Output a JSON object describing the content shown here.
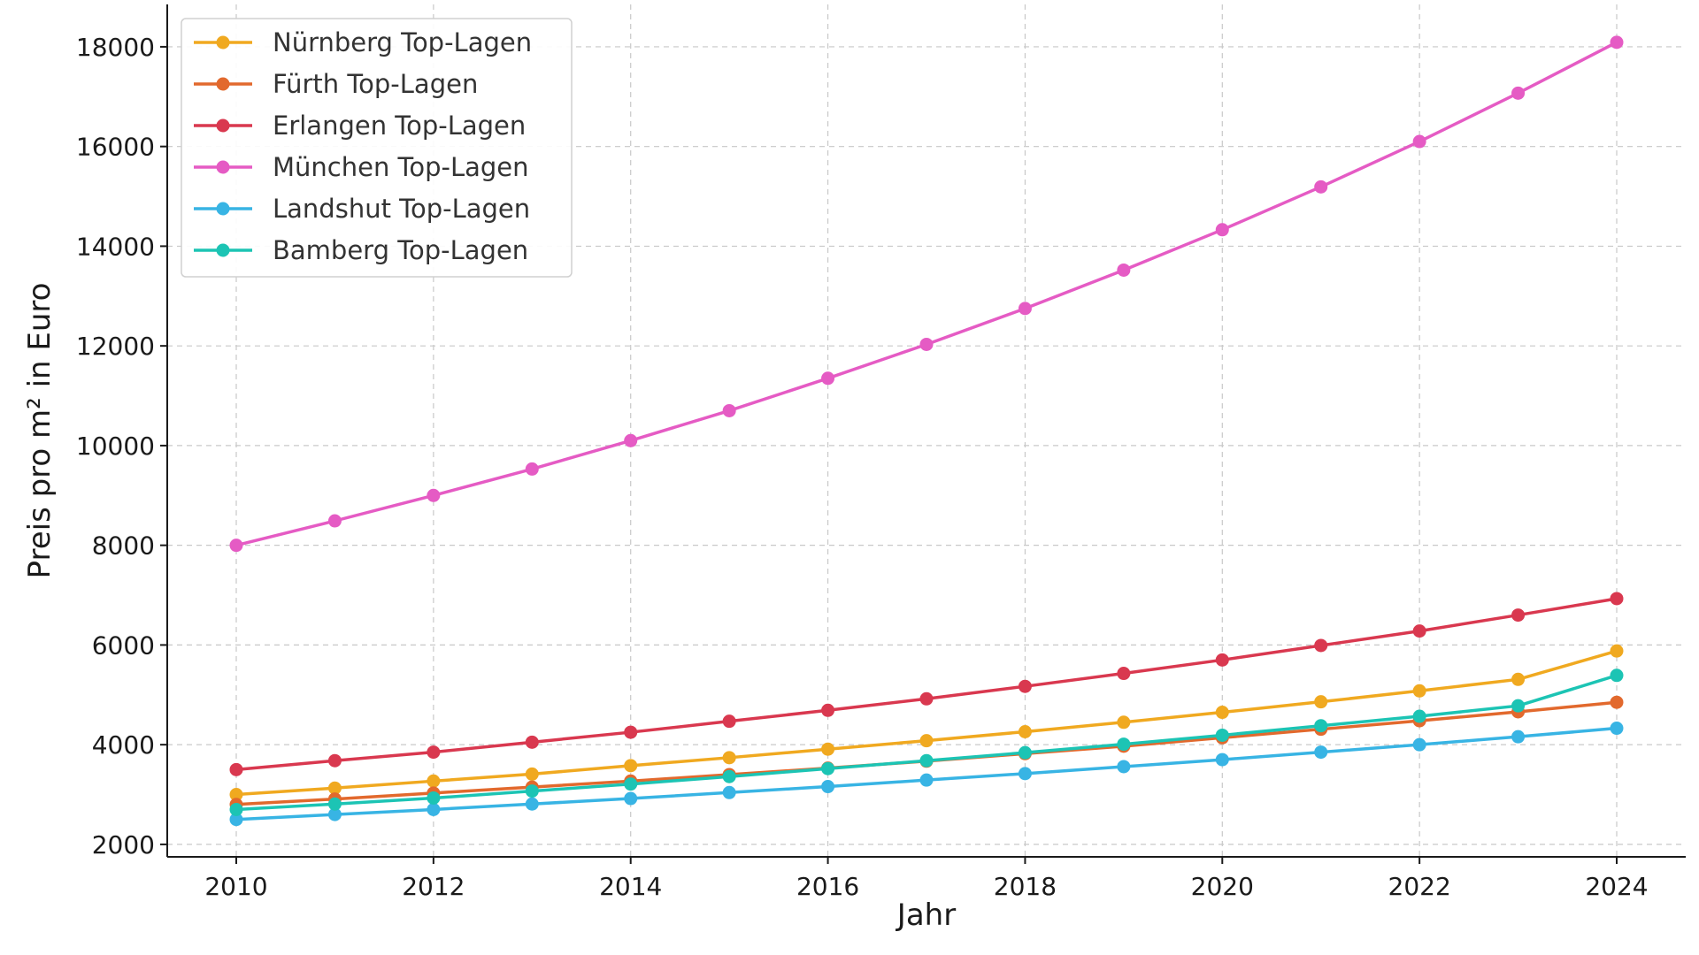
{
  "chart_data": {
    "type": "line",
    "title": "",
    "xlabel": "Jahr",
    "ylabel": "Preis pro m² in Euro",
    "x": [
      2010,
      2011,
      2012,
      2013,
      2014,
      2015,
      2016,
      2017,
      2018,
      2019,
      2020,
      2021,
      2022,
      2023,
      2024
    ],
    "xlim": [
      2009.3,
      2024.7
    ],
    "ylim": [
      1750,
      18850
    ],
    "x_ticks": [
      "2010",
      "2012",
      "2014",
      "2016",
      "2018",
      "2020",
      "2022",
      "2024"
    ],
    "y_ticks": [
      "2000",
      "4000",
      "6000",
      "8000",
      "10000",
      "12000",
      "14000",
      "16000",
      "18000"
    ],
    "grid": true,
    "legend_position": "top-left",
    "series": [
      {
        "name": "Nürnberg Top-Lagen",
        "color": "#f0a920",
        "values": [
          3000,
          3130,
          3270,
          3410,
          3580,
          3740,
          3910,
          4080,
          4260,
          4450,
          4650,
          4860,
          5080,
          5310,
          5880
        ]
      },
      {
        "name": "Fürth Top-Lagen",
        "color": "#e2692d",
        "values": [
          2800,
          2910,
          3030,
          3150,
          3270,
          3400,
          3530,
          3670,
          3820,
          3970,
          4140,
          4310,
          4480,
          4660,
          4850
        ]
      },
      {
        "name": "Erlangen Top-Lagen",
        "color": "#d9384f",
        "values": [
          3500,
          3680,
          3850,
          4050,
          4250,
          4470,
          4690,
          4920,
          5170,
          5430,
          5700,
          5990,
          6280,
          6600,
          6930
        ]
      },
      {
        "name": "München Top-Lagen",
        "color": "#e55bc4",
        "values": [
          8000,
          8490,
          9000,
          9530,
          10100,
          10700,
          11350,
          12030,
          12750,
          13520,
          14330,
          15190,
          16100,
          17070,
          18090
        ]
      },
      {
        "name": "Landshut Top-Lagen",
        "color": "#38b4e4",
        "values": [
          2500,
          2600,
          2700,
          2810,
          2920,
          3040,
          3160,
          3290,
          3420,
          3560,
          3700,
          3850,
          4000,
          4160,
          4330
        ]
      },
      {
        "name": "Bamberg Top-Lagen",
        "color": "#1cc4b4",
        "values": [
          2700,
          2810,
          2930,
          3070,
          3210,
          3360,
          3520,
          3680,
          3840,
          4010,
          4190,
          4380,
          4570,
          4780,
          5390
        ]
      }
    ]
  }
}
